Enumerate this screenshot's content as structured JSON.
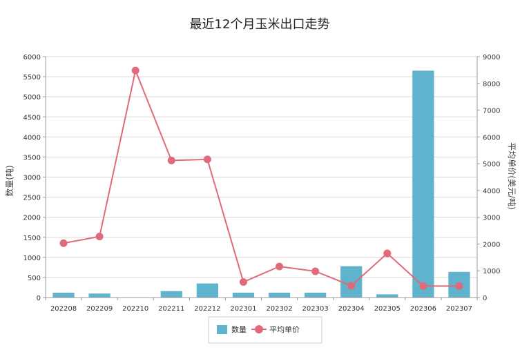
{
  "chart_data": {
    "type": "bar",
    "title": "最近12个月玉米出口走势",
    "categories": [
      "202208",
      "202209",
      "202210",
      "202211",
      "202212",
      "202301",
      "202302",
      "202303",
      "202304",
      "202305",
      "202306",
      "202307"
    ],
    "series": [
      {
        "name": "数量",
        "type": "bar",
        "axis": "left",
        "color": "#5fb3cc",
        "values": [
          120,
          100,
          0,
          160,
          350,
          120,
          120,
          120,
          780,
          80,
          5650,
          640
        ]
      },
      {
        "name": "平均单价",
        "type": "line",
        "axis": "right",
        "color": "#e06a7a",
        "values": [
          2030,
          2280,
          8480,
          5120,
          5160,
          580,
          1160,
          980,
          440,
          1650,
          430,
          430
        ]
      }
    ],
    "ylabel": "数量(吨)",
    "y2label": "平均单价(美元/吨)",
    "ylim": [
      0,
      6000
    ],
    "y2lim": [
      0,
      9000
    ],
    "yticks": [
      "0",
      "500",
      "1000",
      "1500",
      "2000",
      "2500",
      "3000",
      "3500",
      "4000",
      "4500",
      "5000",
      "5500",
      "6000"
    ],
    "y2ticks": [
      "0",
      "1000",
      "2000",
      "3000",
      "4000",
      "5000",
      "6000",
      "7000",
      "8000",
      "9000"
    ],
    "grid": true,
    "legend_position": "bottom"
  }
}
